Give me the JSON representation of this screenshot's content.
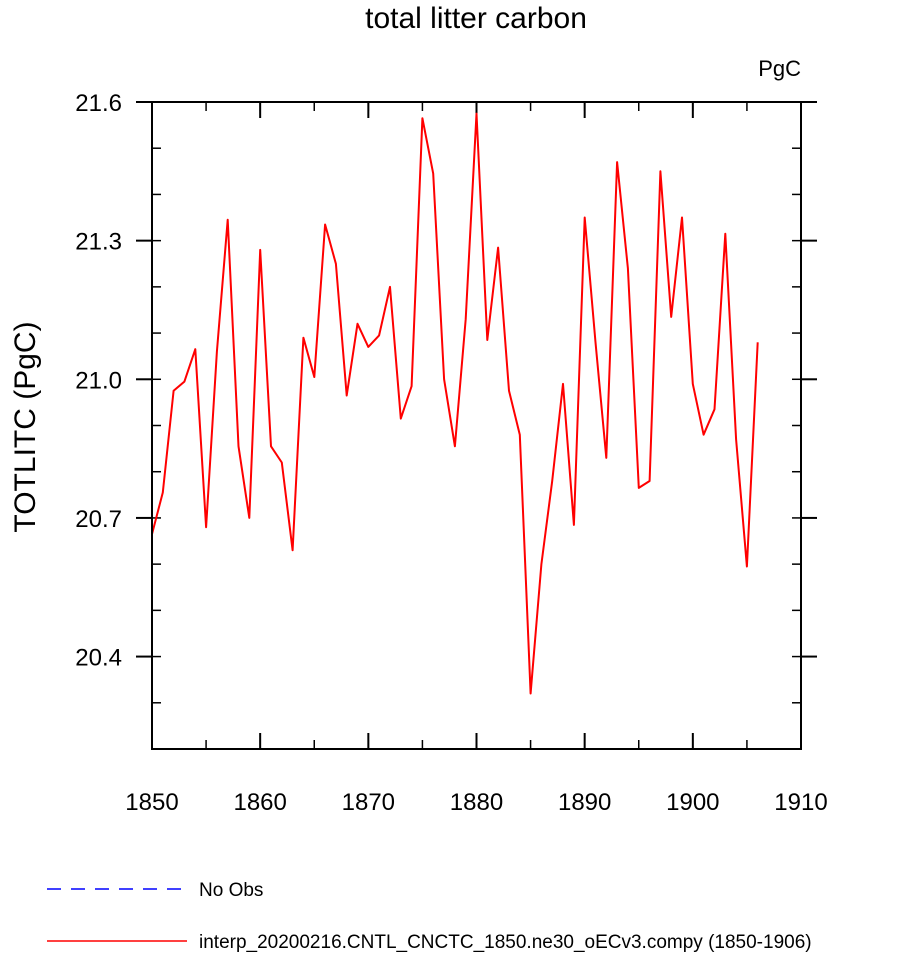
{
  "chart_data": {
    "type": "line",
    "title": "total litter carbon",
    "units_label": "PgC",
    "ylabel": "TOTLITC  (PgC)",
    "xlabel": "",
    "xlim": [
      1850,
      1910
    ],
    "ylim": [
      20.2,
      21.6
    ],
    "xticks": [
      1850,
      1860,
      1870,
      1880,
      1890,
      1900,
      1910
    ],
    "xtick_labels": [
      "1850",
      "1860",
      "1870",
      "1880",
      "1890",
      "1900",
      "1910"
    ],
    "yticks": [
      20.4,
      20.7,
      21.0,
      21.3,
      21.6
    ],
    "ytick_labels": [
      "20.4",
      "20.7",
      "21.0",
      "21.3",
      "21.6"
    ],
    "x_minor_step": 5,
    "y_minor_step": 0.1,
    "grid": false,
    "series": [
      {
        "name": "interp_20200216.CNTL_CNCTC_1850.ne30_oECv3.compy (1850-1906)",
        "color": "#ff0000",
        "style": "solid",
        "x": [
          1850,
          1851,
          1852,
          1853,
          1854,
          1855,
          1856,
          1857,
          1858,
          1859,
          1860,
          1861,
          1862,
          1863,
          1864,
          1865,
          1866,
          1867,
          1868,
          1869,
          1870,
          1871,
          1872,
          1873,
          1874,
          1875,
          1876,
          1877,
          1878,
          1879,
          1880,
          1881,
          1882,
          1883,
          1884,
          1885,
          1886,
          1887,
          1888,
          1889,
          1890,
          1891,
          1892,
          1893,
          1894,
          1895,
          1896,
          1897,
          1898,
          1899,
          1900,
          1901,
          1902,
          1903,
          1904,
          1905,
          1906
        ],
        "values": [
          20.665,
          20.755,
          20.975,
          20.995,
          21.065,
          20.68,
          21.06,
          21.345,
          20.855,
          20.7,
          21.28,
          20.855,
          20.82,
          20.63,
          21.09,
          21.005,
          21.335,
          21.25,
          20.965,
          21.12,
          21.07,
          21.095,
          21.2,
          20.915,
          20.985,
          21.565,
          21.445,
          21.0,
          20.855,
          21.13,
          21.575,
          21.085,
          21.285,
          20.975,
          20.88,
          20.32,
          20.6,
          20.78,
          20.99,
          20.685,
          21.35,
          21.08,
          20.83,
          21.47,
          21.24,
          20.765,
          20.78,
          21.45,
          21.135,
          21.35,
          20.99,
          20.88,
          20.935,
          21.315,
          20.87,
          20.595,
          21.08
        ]
      },
      {
        "name": "No Obs",
        "color": "#0000ff",
        "style": "dashed",
        "x": [],
        "values": []
      }
    ]
  }
}
